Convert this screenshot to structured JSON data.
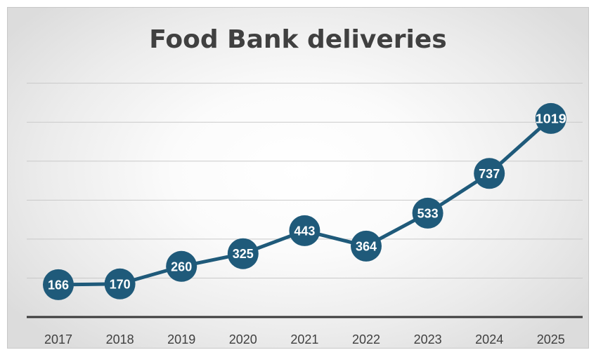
{
  "colors": {
    "series": "#1f5a7a",
    "axis": "#3a3a3a",
    "grid": "#c9c9c9",
    "label": "#ffffff"
  },
  "chart_data": {
    "type": "line",
    "title": "Food Bank deliveries",
    "xlabel": "",
    "ylabel": "",
    "categories": [
      "2017",
      "2018",
      "2019",
      "2020",
      "2021",
      "2022",
      "2023",
      "2024",
      "2025"
    ],
    "values": [
      166,
      170,
      260,
      325,
      443,
      364,
      533,
      737,
      1019
    ],
    "ylim": [
      0,
      1200
    ],
    "yticks_shown": false,
    "grid": true,
    "legend": "none",
    "data_labels": true,
    "marker": "circle"
  }
}
